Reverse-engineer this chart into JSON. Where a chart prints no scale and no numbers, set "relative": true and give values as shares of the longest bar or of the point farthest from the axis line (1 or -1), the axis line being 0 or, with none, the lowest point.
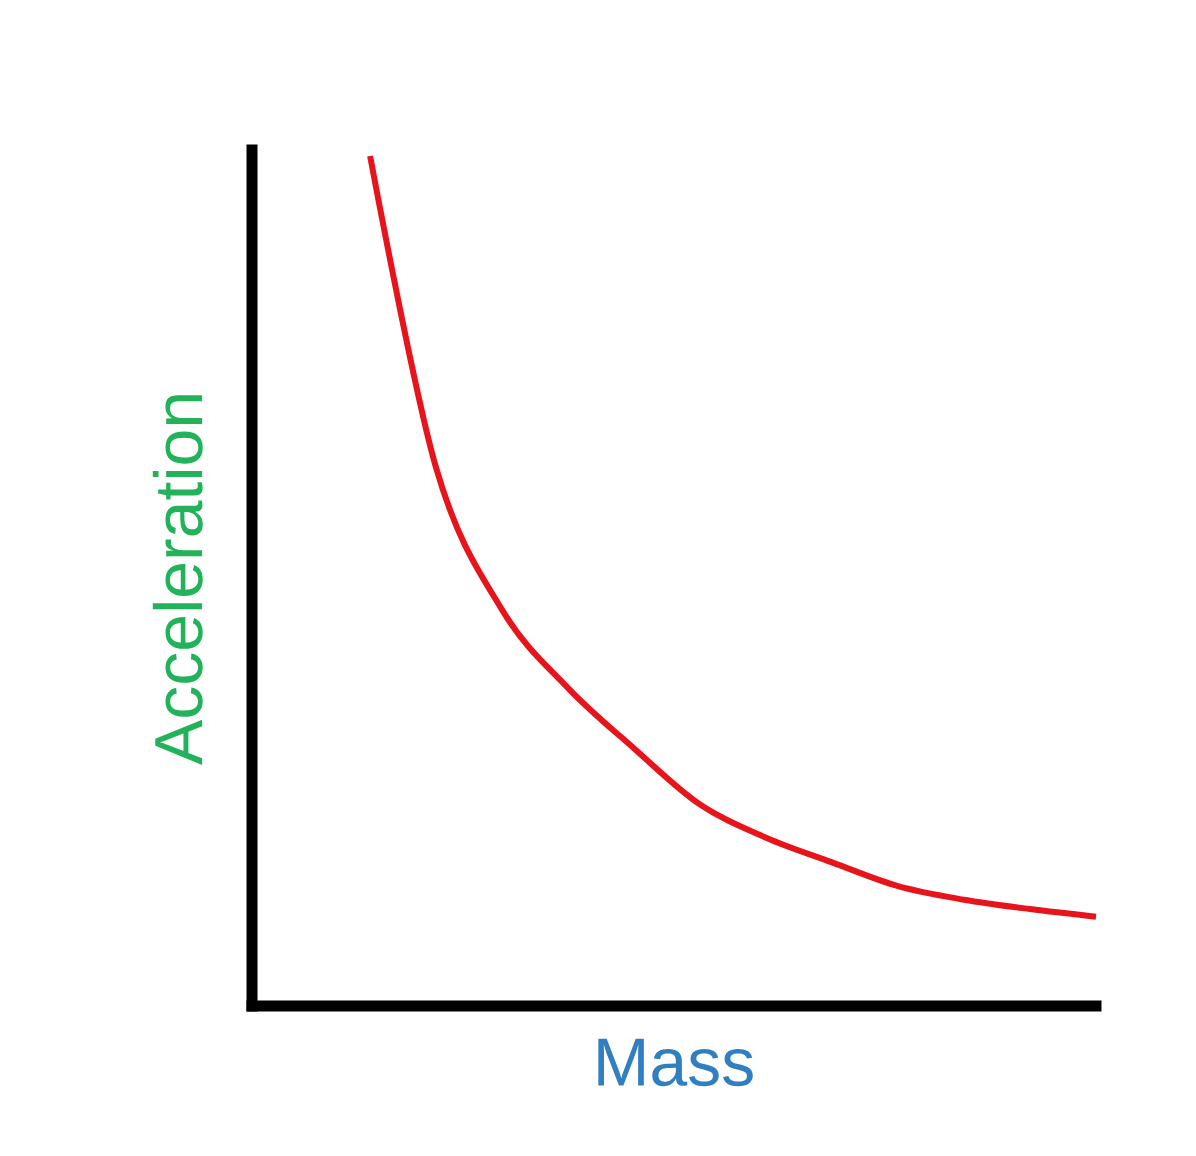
{
  "chart_data": {
    "type": "line",
    "xlabel": "Mass",
    "ylabel": "Acceleration",
    "relative": true,
    "color": "#e8141b",
    "categories": [
      null,
      null,
      null,
      null,
      null,
      null,
      null,
      null,
      null,
      null,
      null,
      null
    ],
    "values": [
      1,
      0.633,
      0.466,
      0.374,
      0.303,
      0.237,
      0.198,
      0.169,
      0.141,
      0.125,
      0.114,
      0.105
    ]
  }
}
